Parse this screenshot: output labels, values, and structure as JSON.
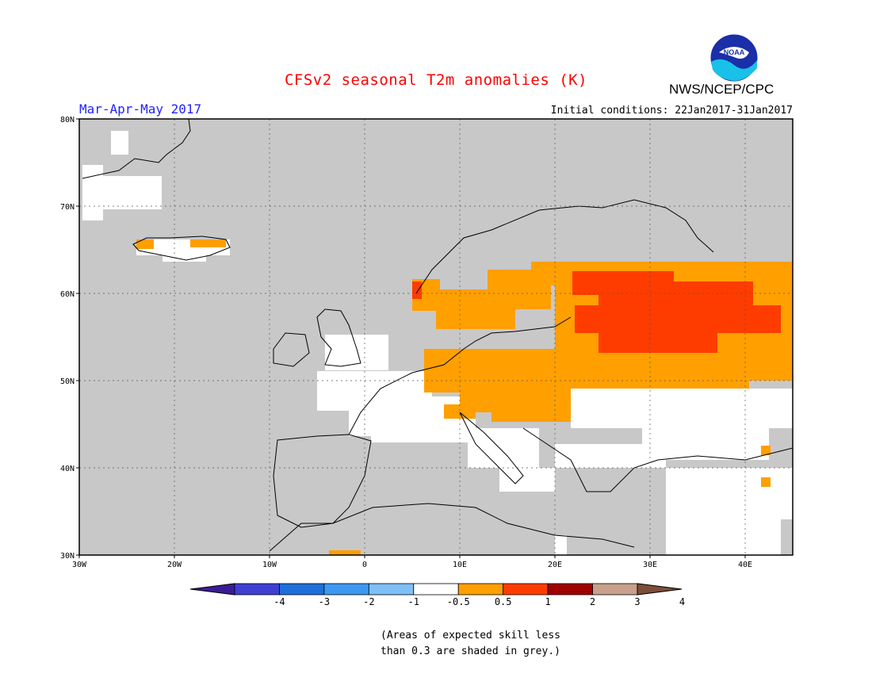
{
  "header": {
    "title": "CFSv2 seasonal T2m anomalies (K)",
    "season": "Mar-Apr-May 2017",
    "initial_conditions": "Initial conditions: 22Jan2017-31Jan2017",
    "agency": "NWS/NCEP/CPC",
    "logo_text": "NOAA"
  },
  "map": {
    "lon_range": [
      -30,
      45
    ],
    "lat_range": [
      30,
      80
    ],
    "background_color": "#c8c8c8",
    "lat_ticks": [
      "30N",
      "40N",
      "50N",
      "60N",
      "70N",
      "80N"
    ],
    "lon_ticks": [
      "30W",
      "20W",
      "10W",
      "0",
      "10E",
      "20E",
      "30E",
      "40E"
    ]
  },
  "colorbar": {
    "labels": [
      "-4",
      "-3",
      "-2",
      "-1",
      "-0.5",
      "0.5",
      "1",
      "2",
      "3",
      "4"
    ],
    "colors": [
      "#3c1c96",
      "#3f3fd4",
      "#1e6fdc",
      "#3d98f2",
      "#7fbff7",
      "#ffffff",
      "#ff9f00",
      "#ff3c00",
      "#a00000",
      "#c8a08c",
      "#7d4e3a"
    ]
  },
  "note": {
    "line1": "(Areas of expected skill less",
    "line2": "than 0.3 are shaded in grey.)"
  }
}
